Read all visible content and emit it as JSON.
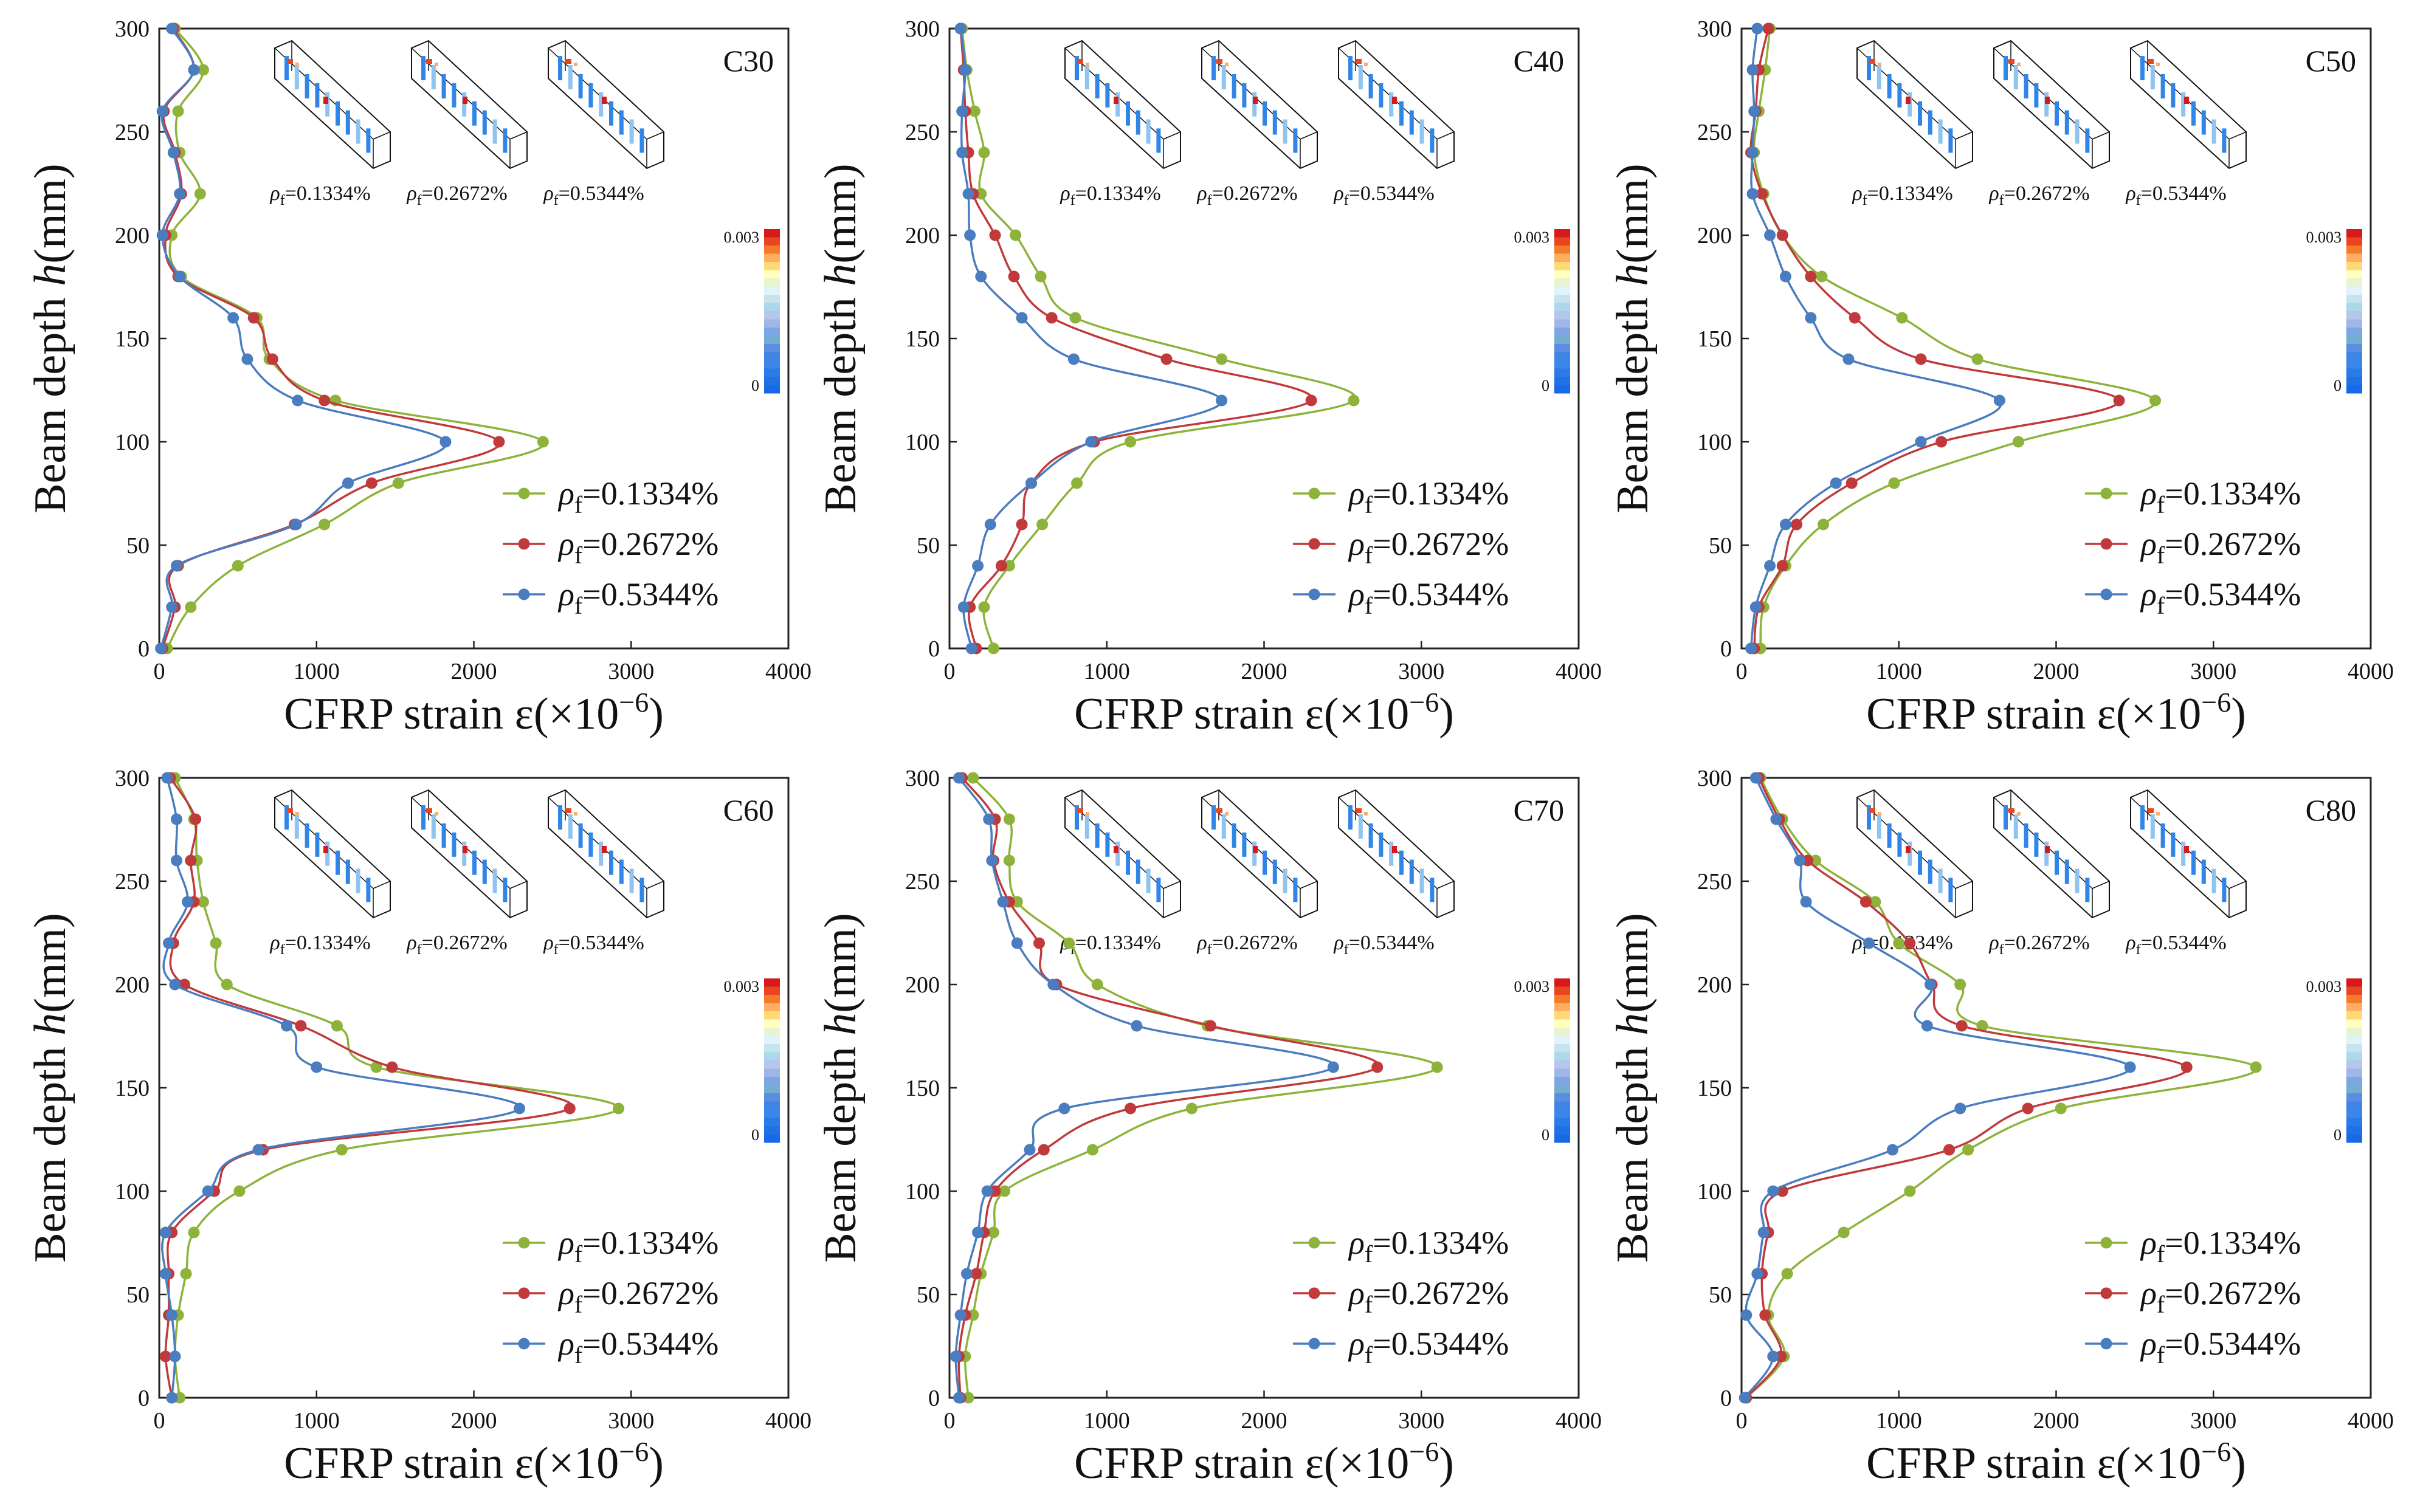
{
  "figure": {
    "series_colors": [
      "#8db33a",
      "#c0393b",
      "#4a7cc0"
    ]
  },
  "chart_data": [
    {
      "type": "line",
      "panel_label": "C30",
      "xlabel_main": "CFRP strain ε(×10",
      "xlabel_exp": "−6",
      "xlabel_close": ")",
      "ylabel_main": "Beam depth ",
      "ylabel_var": "h",
      "ylabel_unit": "(mm)",
      "xlim": [
        0,
        4000
      ],
      "ylim": [
        0,
        300
      ],
      "xticks": [
        "0",
        "1000",
        "2000",
        "3000",
        "4000"
      ],
      "yticks": [
        "0",
        "50",
        "100",
        "150",
        "200",
        "250",
        "300"
      ],
      "legend_symbol": "ρ",
      "legend_sub": "f",
      "inset_labels": [
        "=0.1334%",
        "=0.2672%",
        "=0.5344%"
      ],
      "colorbar_labels": [
        "0.003",
        "0"
      ],
      "series": [
        {
          "name": "=0.1334%",
          "color": "#8db33a",
          "x": [
            50,
            200,
            500,
            1050,
            1520,
            2440,
            1120,
            700,
            620,
            140,
            80,
            260,
            130,
            120,
            280,
            100
          ],
          "y": [
            0,
            20,
            40,
            60,
            80,
            100,
            120,
            140,
            160,
            180,
            200,
            220,
            240,
            260,
            280,
            300
          ]
        },
        {
          "name": "=0.2672%",
          "color": "#c0393b",
          "x": [
            20,
            100,
            120,
            860,
            1350,
            2160,
            1050,
            720,
            600,
            120,
            40,
            140,
            100,
            30,
            220,
            90
          ],
          "y": [
            0,
            20,
            40,
            60,
            80,
            100,
            120,
            140,
            160,
            180,
            200,
            220,
            240,
            260,
            280,
            300
          ]
        },
        {
          "name": "=0.5344%",
          "color": "#4a7cc0",
          "x": [
            10,
            80,
            110,
            870,
            1200,
            1820,
            880,
            560,
            470,
            130,
            20,
            130,
            90,
            20,
            220,
            80
          ],
          "y": [
            0,
            20,
            40,
            60,
            80,
            100,
            120,
            140,
            160,
            180,
            200,
            220,
            240,
            260,
            280,
            300
          ]
        }
      ]
    },
    {
      "type": "line",
      "panel_label": "C40",
      "xlabel_main": "CFRP strain ε(×10",
      "xlabel_exp": "−6",
      "xlabel_close": ")",
      "ylabel_main": "Beam depth ",
      "ylabel_var": "h",
      "ylabel_unit": "(mm)",
      "xlim": [
        0,
        4000
      ],
      "ylim": [
        0,
        300
      ],
      "xticks": [
        "0",
        "1000",
        "2000",
        "3000",
        "4000"
      ],
      "yticks": [
        "0",
        "50",
        "100",
        "150",
        "200",
        "250",
        "300"
      ],
      "legend_symbol": "ρ",
      "legend_sub": "f",
      "inset_labels": [
        "=0.1334%",
        "=0.2672%",
        "=0.5344%"
      ],
      "colorbar_labels": [
        "0.003",
        "0"
      ],
      "series": [
        {
          "name": "=0.1334%",
          "color": "#8db33a",
          "x": [
            280,
            220,
            380,
            590,
            810,
            1150,
            2570,
            1730,
            800,
            580,
            420,
            200,
            220,
            160,
            110,
            80
          ],
          "y": [
            0,
            20,
            40,
            60,
            80,
            100,
            120,
            140,
            160,
            180,
            200,
            220,
            240,
            260,
            280,
            300
          ]
        },
        {
          "name": "=0.2672%",
          "color": "#c0393b",
          "x": [
            170,
            130,
            330,
            460,
            520,
            920,
            2300,
            1380,
            650,
            410,
            290,
            150,
            120,
            100,
            90,
            70
          ],
          "y": [
            0,
            20,
            40,
            60,
            80,
            100,
            120,
            140,
            160,
            180,
            200,
            220,
            240,
            260,
            280,
            300
          ]
        },
        {
          "name": "=0.5344%",
          "color": "#4a7cc0",
          "x": [
            140,
            90,
            180,
            260,
            520,
            900,
            1730,
            790,
            460,
            200,
            130,
            120,
            80,
            80,
            100,
            70
          ],
          "y": [
            0,
            20,
            40,
            60,
            80,
            100,
            120,
            140,
            160,
            180,
            200,
            220,
            240,
            260,
            280,
            300
          ]
        }
      ]
    },
    {
      "type": "line",
      "panel_label": "C50",
      "xlabel_main": "CFRP strain ε(×10",
      "xlabel_exp": "−6",
      "xlabel_close": ")",
      "ylabel_main": "Beam depth ",
      "ylabel_var": "h",
      "ylabel_unit": "(mm)",
      "xlim": [
        0,
        4000
      ],
      "ylim": [
        0,
        300
      ],
      "xticks": [
        "0",
        "1000",
        "2000",
        "3000",
        "4000"
      ],
      "yticks": [
        "0",
        "50",
        "100",
        "150",
        "200",
        "250",
        "300"
      ],
      "legend_symbol": "ρ",
      "legend_sub": "f",
      "inset_labels": [
        "=0.1334%",
        "=0.2672%",
        "=0.5344%"
      ],
      "colorbar_labels": [
        "0.003",
        "0"
      ],
      "series": [
        {
          "name": "=0.1334%",
          "color": "#8db33a",
          "x": [
            120,
            140,
            280,
            520,
            970,
            1760,
            2630,
            1500,
            1020,
            510,
            260,
            140,
            80,
            110,
            150,
            180
          ],
          "y": [
            0,
            20,
            40,
            60,
            80,
            100,
            120,
            140,
            160,
            180,
            200,
            220,
            240,
            260,
            280,
            300
          ]
        },
        {
          "name": "=0.2672%",
          "color": "#c0393b",
          "x": [
            80,
            110,
            260,
            350,
            700,
            1270,
            2400,
            1140,
            720,
            440,
            260,
            130,
            60,
            90,
            110,
            170
          ],
          "y": [
            0,
            20,
            40,
            60,
            80,
            100,
            120,
            140,
            160,
            180,
            200,
            220,
            240,
            260,
            280,
            300
          ]
        },
        {
          "name": "=0.5344%",
          "color": "#4a7cc0",
          "x": [
            60,
            90,
            180,
            280,
            600,
            1140,
            1640,
            680,
            440,
            280,
            180,
            70,
            70,
            80,
            70,
            100
          ],
          "y": [
            0,
            20,
            40,
            60,
            80,
            100,
            120,
            140,
            160,
            180,
            200,
            220,
            240,
            260,
            280,
            300
          ]
        }
      ]
    },
    {
      "type": "line",
      "panel_label": "C60",
      "xlabel_main": "CFRP strain ε(×10",
      "xlabel_exp": "−6",
      "xlabel_close": ")",
      "ylabel_main": "Beam depth ",
      "ylabel_var": "h",
      "ylabel_unit": "(mm)",
      "xlim": [
        0,
        4000
      ],
      "ylim": [
        0,
        300
      ],
      "xticks": [
        "0",
        "1000",
        "2000",
        "3000",
        "4000"
      ],
      "yticks": [
        "0",
        "50",
        "100",
        "150",
        "200",
        "250",
        "300"
      ],
      "legend_symbol": "ρ",
      "legend_sub": "f",
      "inset_labels": [
        "=0.1334%",
        "=0.2672%",
        "=0.5344%"
      ],
      "colorbar_labels": [
        "0.003",
        "0"
      ],
      "series": [
        {
          "name": "=0.1334%",
          "color": "#8db33a",
          "x": [
            130,
            100,
            120,
            170,
            220,
            510,
            1160,
            2920,
            1380,
            1130,
            430,
            360,
            280,
            240,
            220,
            100
          ],
          "y": [
            0,
            20,
            40,
            60,
            80,
            100,
            120,
            140,
            160,
            180,
            200,
            220,
            240,
            260,
            280,
            300
          ]
        },
        {
          "name": "=0.2672%",
          "color": "#c0393b",
          "x": [
            80,
            40,
            60,
            60,
            80,
            350,
            660,
            2610,
            1480,
            900,
            160,
            90,
            220,
            200,
            230,
            70
          ],
          "y": [
            0,
            20,
            40,
            60,
            80,
            100,
            120,
            140,
            160,
            180,
            200,
            220,
            240,
            260,
            280,
            300
          ]
        },
        {
          "name": "=0.5344%",
          "color": "#4a7cc0",
          "x": [
            80,
            100,
            80,
            40,
            40,
            310,
            630,
            2290,
            1000,
            810,
            100,
            60,
            180,
            110,
            110,
            50
          ],
          "y": [
            0,
            20,
            40,
            60,
            80,
            100,
            120,
            140,
            160,
            180,
            200,
            220,
            240,
            260,
            280,
            300
          ]
        }
      ]
    },
    {
      "type": "line",
      "panel_label": "C70",
      "xlabel_main": "CFRP strain ε(×10",
      "xlabel_exp": "−6",
      "xlabel_close": ")",
      "ylabel_main": "Beam depth ",
      "ylabel_var": "h",
      "ylabel_unit": "(mm)",
      "xlim": [
        0,
        4000
      ],
      "ylim": [
        0,
        300
      ],
      "xticks": [
        "0",
        "1000",
        "2000",
        "3000",
        "4000"
      ],
      "yticks": [
        "0",
        "50",
        "100",
        "150",
        "200",
        "250",
        "300"
      ],
      "legend_symbol": "ρ",
      "legend_sub": "f",
      "inset_labels": [
        "=0.1334%",
        "=0.2672%",
        "=0.5344%"
      ],
      "colorbar_labels": [
        "0.003",
        "0"
      ],
      "series": [
        {
          "name": "=0.1334%",
          "color": "#8db33a",
          "x": [
            120,
            100,
            150,
            200,
            280,
            350,
            910,
            1540,
            3100,
            1640,
            940,
            760,
            430,
            380,
            380,
            150
          ],
          "y": [
            0,
            20,
            40,
            60,
            80,
            100,
            120,
            140,
            160,
            180,
            200,
            220,
            240,
            260,
            280,
            300
          ]
        },
        {
          "name": "=0.2672%",
          "color": "#c0393b",
          "x": [
            70,
            60,
            100,
            170,
            220,
            290,
            600,
            1150,
            2720,
            1660,
            680,
            570,
            380,
            280,
            290,
            80
          ],
          "y": [
            0,
            20,
            40,
            60,
            80,
            100,
            120,
            140,
            160,
            180,
            200,
            220,
            240,
            260,
            280,
            300
          ]
        },
        {
          "name": "=0.5344%",
          "color": "#4a7cc0",
          "x": [
            60,
            40,
            70,
            110,
            180,
            240,
            510,
            730,
            2440,
            1190,
            660,
            430,
            340,
            270,
            250,
            60
          ],
          "y": [
            0,
            20,
            40,
            60,
            80,
            100,
            120,
            140,
            160,
            180,
            200,
            220,
            240,
            260,
            280,
            300
          ]
        }
      ]
    },
    {
      "type": "line",
      "panel_label": "C80",
      "xlabel_main": "CFRP strain ε(×10",
      "xlabel_exp": "−6",
      "xlabel_close": ")",
      "ylabel_main": "Beam depth ",
      "ylabel_var": "h",
      "ylabel_unit": "(mm)",
      "xlim": [
        0,
        4000
      ],
      "ylim": [
        0,
        300
      ],
      "xticks": [
        "0",
        "1000",
        "2000",
        "3000",
        "4000"
      ],
      "yticks": [
        "0",
        "50",
        "100",
        "150",
        "200",
        "250",
        "300"
      ],
      "legend_symbol": "ρ",
      "legend_sub": "f",
      "inset_labels": [
        "=0.1334%",
        "=0.2672%",
        "=0.5344%"
      ],
      "colorbar_labels": [
        "0.003",
        "0"
      ],
      "series": [
        {
          "name": "=0.1334%",
          "color": "#8db33a",
          "x": [
            30,
            270,
            170,
            290,
            650,
            1070,
            1440,
            2030,
            3270,
            1530,
            1390,
            1000,
            850,
            470,
            260,
            120
          ],
          "y": [
            0,
            20,
            40,
            60,
            80,
            100,
            120,
            140,
            160,
            180,
            200,
            220,
            240,
            260,
            280,
            300
          ]
        },
        {
          "name": "=0.2672%",
          "color": "#c0393b",
          "x": [
            30,
            250,
            150,
            130,
            170,
            260,
            1320,
            1820,
            2830,
            1400,
            1210,
            1070,
            790,
            420,
            240,
            110
          ],
          "y": [
            0,
            20,
            40,
            60,
            80,
            100,
            120,
            140,
            160,
            180,
            200,
            220,
            240,
            260,
            280,
            300
          ]
        },
        {
          "name": "=0.5344%",
          "color": "#4a7cc0",
          "x": [
            20,
            200,
            30,
            100,
            140,
            200,
            960,
            1390,
            2470,
            1180,
            1200,
            810,
            410,
            370,
            220,
            90
          ],
          "y": [
            0,
            20,
            40,
            60,
            80,
            100,
            120,
            140,
            160,
            180,
            200,
            220,
            240,
            260,
            280,
            300
          ]
        }
      ]
    }
  ]
}
